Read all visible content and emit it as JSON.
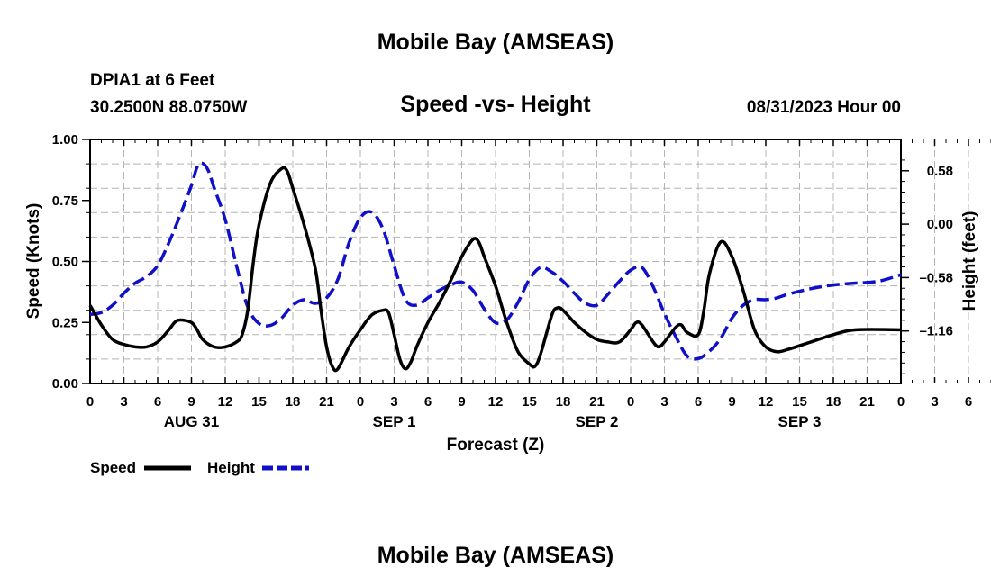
{
  "chart_data": {
    "type": "line",
    "title": "Mobile Bay (AMSEAS)",
    "subtitle": "Speed -vs- Height",
    "station": "DPIA1 at 6 Feet",
    "location": "30.2500N  88.0750W",
    "run_time": "08/31/2023 Hour 00",
    "xlabel": "Forecast (Z)",
    "ylabel_left": "Speed (Knots)",
    "ylabel_right": "Height (feet)",
    "footer_title": "Mobile Bay (AMSEAS)",
    "x_range_hours": [
      0,
      72
    ],
    "x_tick_labels": [
      "0",
      "3",
      "6",
      "9",
      "12",
      "15",
      "18",
      "21",
      "0",
      "3",
      "6",
      "9",
      "12",
      "15",
      "18",
      "21",
      "0",
      "3",
      "6",
      "9",
      "12",
      "15",
      "18",
      "21",
      "0",
      "3",
      "6",
      "9",
      "12",
      "15",
      "18",
      "21",
      "0"
    ],
    "day_labels": [
      {
        "label": "AUG 31",
        "hour": 9
      },
      {
        "label": "SEP 1",
        "hour": 27
      },
      {
        "label": "SEP 2",
        "hour": 45
      },
      {
        "label": "SEP 3",
        "hour": 63
      }
    ],
    "left_axis": {
      "range": [
        0,
        1.0
      ],
      "ticks": [
        "0.00",
        "0.25",
        "0.50",
        "0.75",
        "1.00"
      ]
    },
    "right_axis": {
      "range": [
        -1.73,
        0.92
      ],
      "tick_values": [
        0.58,
        0.0,
        -0.58,
        -1.16
      ],
      "tick_labels": [
        "0.58",
        "0.00",
        "–0.58",
        "–1.16"
      ]
    },
    "grid": true,
    "series": [
      {
        "name": "Speed",
        "axis": "left",
        "color": "#000000",
        "dash": "solid",
        "points": [
          [
            0,
            0.32
          ],
          [
            1,
            0.24
          ],
          [
            2,
            0.18
          ],
          [
            3,
            0.16
          ],
          [
            4,
            0.15
          ],
          [
            5,
            0.15
          ],
          [
            6,
            0.17
          ],
          [
            7,
            0.22
          ],
          [
            7.5,
            0.25
          ],
          [
            8,
            0.26
          ],
          [
            9,
            0.25
          ],
          [
            9.5,
            0.22
          ],
          [
            10,
            0.18
          ],
          [
            11,
            0.15
          ],
          [
            12,
            0.15
          ],
          [
            13,
            0.17
          ],
          [
            13.5,
            0.2
          ],
          [
            14,
            0.3
          ],
          [
            14.5,
            0.5
          ],
          [
            15,
            0.65
          ],
          [
            16,
            0.82
          ],
          [
            17,
            0.88
          ],
          [
            17.5,
            0.87
          ],
          [
            18,
            0.8
          ],
          [
            19,
            0.65
          ],
          [
            20,
            0.47
          ],
          [
            20.5,
            0.3
          ],
          [
            21,
            0.15
          ],
          [
            21.5,
            0.07
          ],
          [
            22,
            0.06
          ],
          [
            23,
            0.15
          ],
          [
            24,
            0.22
          ],
          [
            25,
            0.28
          ],
          [
            26,
            0.3
          ],
          [
            26.5,
            0.29
          ],
          [
            27,
            0.2
          ],
          [
            27.5,
            0.1
          ],
          [
            28,
            0.06
          ],
          [
            28.5,
            0.09
          ],
          [
            29,
            0.15
          ],
          [
            30,
            0.25
          ],
          [
            31,
            0.33
          ],
          [
            32,
            0.42
          ],
          [
            33,
            0.52
          ],
          [
            34,
            0.59
          ],
          [
            34.5,
            0.58
          ],
          [
            35,
            0.52
          ],
          [
            36,
            0.4
          ],
          [
            37,
            0.25
          ],
          [
            38,
            0.13
          ],
          [
            39,
            0.08
          ],
          [
            39.5,
            0.07
          ],
          [
            40,
            0.12
          ],
          [
            41,
            0.28
          ],
          [
            41.5,
            0.31
          ],
          [
            42,
            0.3
          ],
          [
            43,
            0.25
          ],
          [
            44,
            0.21
          ],
          [
            45,
            0.18
          ],
          [
            46,
            0.17
          ],
          [
            47,
            0.17
          ],
          [
            48,
            0.22
          ],
          [
            48.5,
            0.25
          ],
          [
            49,
            0.24
          ],
          [
            50,
            0.17
          ],
          [
            50.5,
            0.15
          ],
          [
            51,
            0.17
          ],
          [
            52,
            0.23
          ],
          [
            52.5,
            0.24
          ],
          [
            53,
            0.21
          ],
          [
            54,
            0.2
          ],
          [
            54.5,
            0.3
          ],
          [
            55,
            0.45
          ],
          [
            56,
            0.58
          ],
          [
            57,
            0.52
          ],
          [
            58,
            0.38
          ],
          [
            59,
            0.22
          ],
          [
            60,
            0.15
          ],
          [
            61,
            0.13
          ],
          [
            62,
            0.14
          ],
          [
            64,
            0.17
          ],
          [
            66,
            0.2
          ],
          [
            68,
            0.22
          ],
          [
            72,
            0.22
          ]
        ]
      },
      {
        "name": "Height",
        "axis": "right",
        "color": "#1010c8",
        "dash": "dashed",
        "points": [
          [
            0,
            -0.98
          ],
          [
            1,
            -0.96
          ],
          [
            2,
            -0.88
          ],
          [
            3,
            -0.75
          ],
          [
            4,
            -0.64
          ],
          [
            5,
            -0.57
          ],
          [
            6,
            -0.45
          ],
          [
            7,
            -0.2
          ],
          [
            8,
            0.1
          ],
          [
            9,
            0.42
          ],
          [
            9.5,
            0.62
          ],
          [
            10,
            0.66
          ],
          [
            10.5,
            0.58
          ],
          [
            11,
            0.4
          ],
          [
            12,
            0.05
          ],
          [
            13,
            -0.45
          ],
          [
            14,
            -0.9
          ],
          [
            15,
            -1.08
          ],
          [
            16,
            -1.1
          ],
          [
            17,
            -1.02
          ],
          [
            18,
            -0.88
          ],
          [
            19,
            -0.82
          ],
          [
            20,
            -0.86
          ],
          [
            21,
            -0.8
          ],
          [
            22,
            -0.6
          ],
          [
            23,
            -0.2
          ],
          [
            24,
            0.07
          ],
          [
            25,
            0.13
          ],
          [
            26,
            -0.05
          ],
          [
            27,
            -0.45
          ],
          [
            28,
            -0.82
          ],
          [
            29,
            -0.88
          ],
          [
            30,
            -0.8
          ],
          [
            31,
            -0.72
          ],
          [
            32,
            -0.66
          ],
          [
            33,
            -0.63
          ],
          [
            34,
            -0.72
          ],
          [
            35,
            -0.92
          ],
          [
            36,
            -1.07
          ],
          [
            37,
            -1.04
          ],
          [
            38,
            -0.85
          ],
          [
            39,
            -0.6
          ],
          [
            40,
            -0.47
          ],
          [
            41,
            -0.52
          ],
          [
            42,
            -0.62
          ],
          [
            43,
            -0.75
          ],
          [
            44,
            -0.86
          ],
          [
            45,
            -0.88
          ],
          [
            46,
            -0.76
          ],
          [
            47,
            -0.62
          ],
          [
            48,
            -0.5
          ],
          [
            49,
            -0.47
          ],
          [
            50,
            -0.68
          ],
          [
            51,
            -0.97
          ],
          [
            52,
            -1.22
          ],
          [
            53,
            -1.43
          ],
          [
            54,
            -1.46
          ],
          [
            55,
            -1.38
          ],
          [
            56,
            -1.24
          ],
          [
            57,
            -1.02
          ],
          [
            58,
            -0.88
          ],
          [
            59,
            -0.82
          ],
          [
            60,
            -0.82
          ],
          [
            61,
            -0.8
          ],
          [
            62,
            -0.76
          ],
          [
            64,
            -0.7
          ],
          [
            66,
            -0.66
          ],
          [
            68,
            -0.64
          ],
          [
            70,
            -0.62
          ],
          [
            72,
            -0.55
          ]
        ]
      }
    ],
    "legend": [
      {
        "name": "Speed",
        "color": "#000000",
        "dash": "solid"
      },
      {
        "name": "Height",
        "color": "#1010c8",
        "dash": "dashed"
      }
    ]
  }
}
